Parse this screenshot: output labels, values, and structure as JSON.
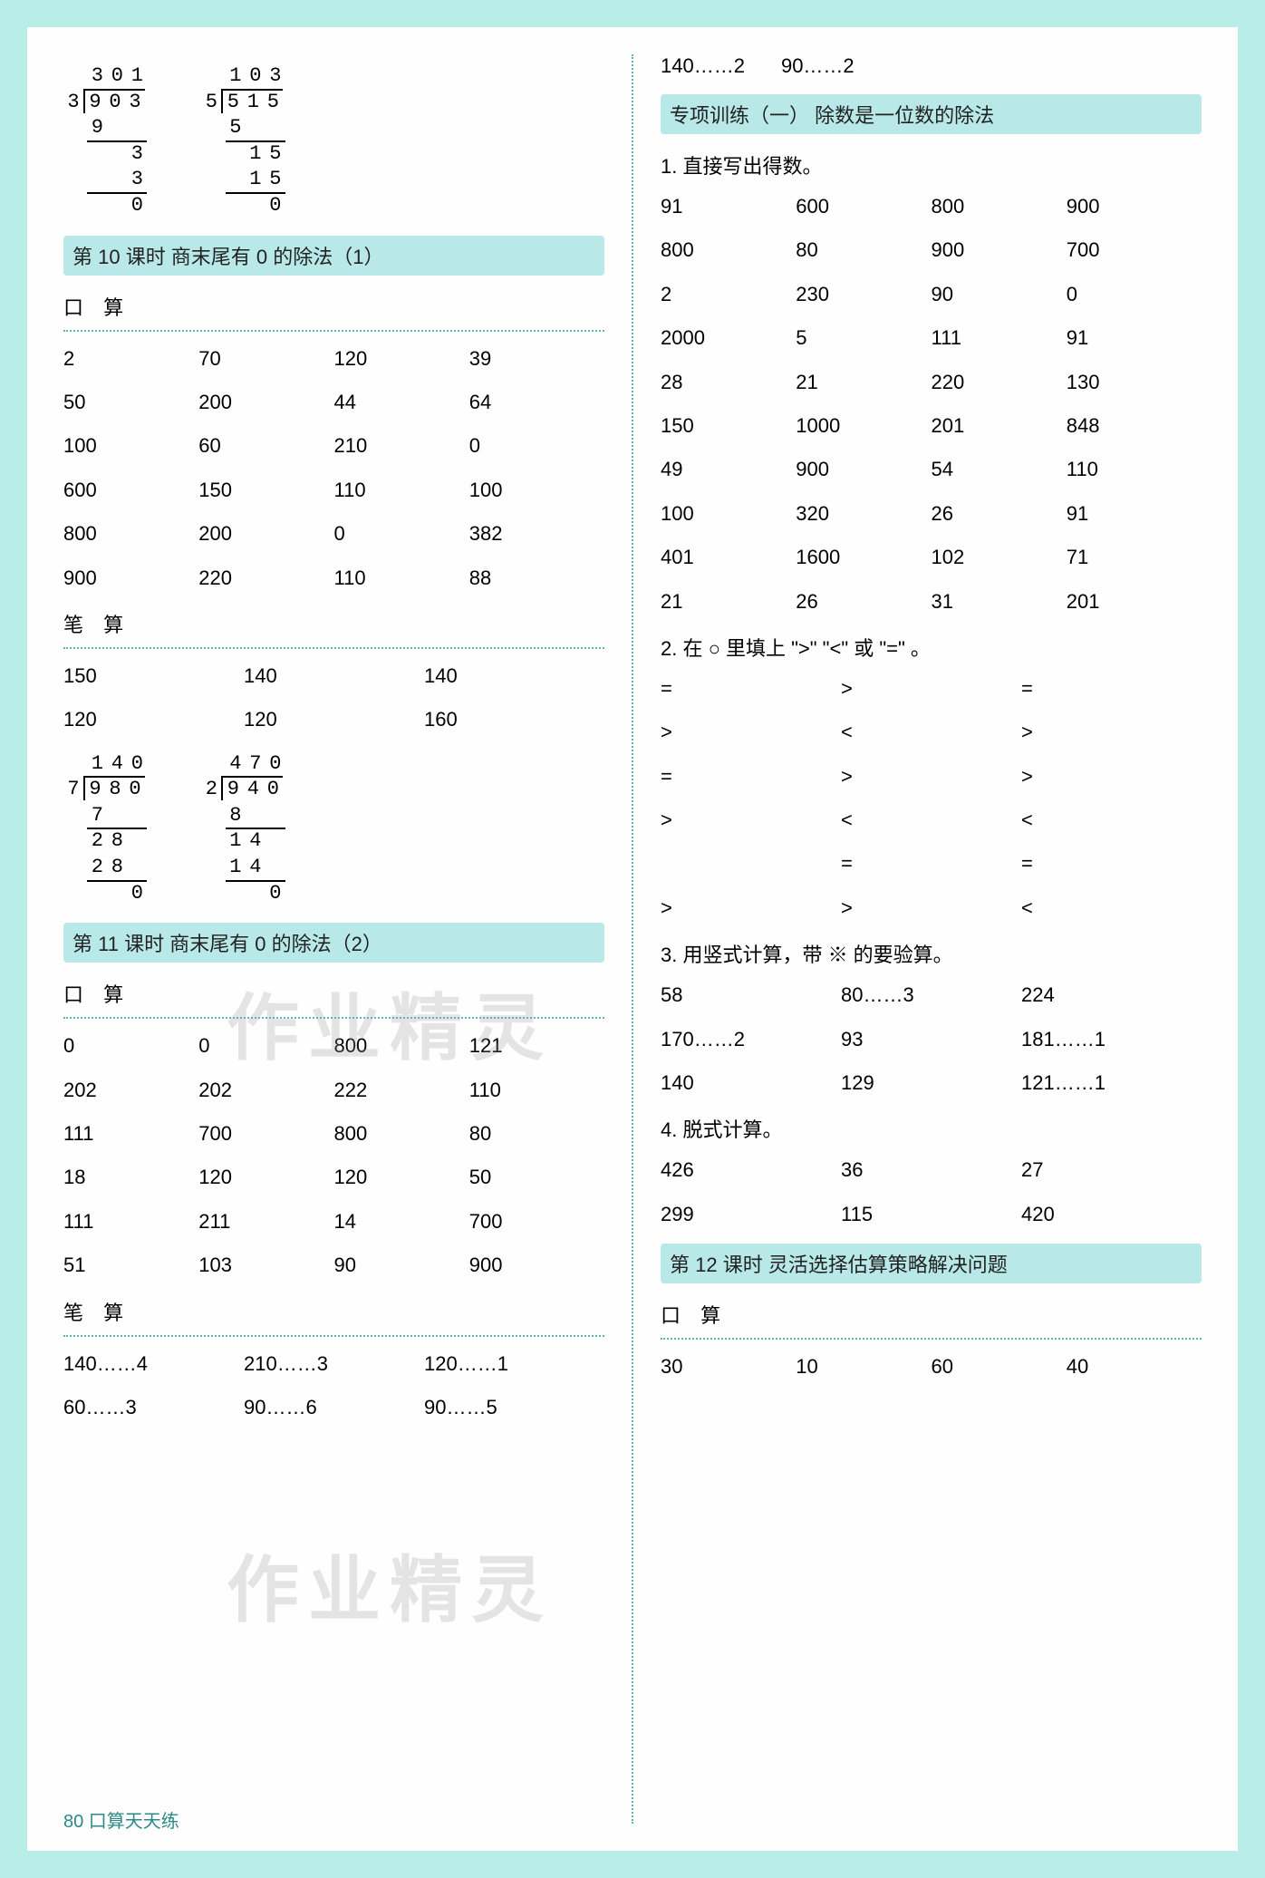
{
  "col1": {
    "longdiv_top": [
      {
        "quotient": [
          "3",
          "0",
          "1"
        ],
        "divisor": "3",
        "dividend": [
          "9",
          "0",
          "3"
        ],
        "steps": [
          [
            "9"
          ],
          [
            "",
            "",
            "3"
          ],
          [
            "",
            "",
            "3"
          ],
          [
            "",
            "",
            "0"
          ]
        ]
      },
      {
        "quotient": [
          "1",
          "0",
          "3"
        ],
        "divisor": "5",
        "dividend": [
          "5",
          "1",
          "5"
        ],
        "steps": [
          [
            "5"
          ],
          [
            "",
            "1",
            "5"
          ],
          [
            "",
            "1",
            "5"
          ],
          [
            "",
            "",
            "0"
          ]
        ]
      }
    ],
    "header10": "第 10 课时  商末尾有 0 的除法（1）",
    "label_kousuan": "口 算",
    "kousuan10": [
      [
        "2",
        "70",
        "120",
        "39"
      ],
      [
        "50",
        "200",
        "44",
        "64"
      ],
      [
        "100",
        "60",
        "210",
        "0"
      ],
      [
        "600",
        "150",
        "110",
        "100"
      ],
      [
        "800",
        "200",
        "0",
        "382"
      ],
      [
        "900",
        "220",
        "110",
        "88"
      ]
    ],
    "label_bisuan": "笔 算",
    "bisuan10_top": [
      [
        "150",
        "140",
        "140"
      ],
      [
        "120",
        "120",
        "160"
      ]
    ],
    "longdiv_mid": [
      {
        "quotient": [
          "1",
          "4",
          "0"
        ],
        "divisor": "7",
        "dividend": [
          "9",
          "8",
          "0"
        ],
        "steps": [
          [
            "7"
          ],
          [
            "2",
            "8"
          ],
          [
            "2",
            "8"
          ],
          [
            "",
            "",
            "0"
          ]
        ]
      },
      {
        "quotient": [
          "4",
          "7",
          "0"
        ],
        "divisor": "2",
        "dividend": [
          "9",
          "4",
          "0"
        ],
        "steps": [
          [
            "8"
          ],
          [
            "1",
            "4"
          ],
          [
            "1",
            "4"
          ],
          [
            "",
            "",
            "0"
          ]
        ]
      }
    ],
    "header11": "第 11 课时  商末尾有 0 的除法（2）",
    "kousuan11": [
      [
        "0",
        "0",
        "800",
        "121"
      ],
      [
        "202",
        "202",
        "222",
        "110"
      ],
      [
        "111",
        "700",
        "800",
        "80"
      ],
      [
        "18",
        "120",
        "120",
        "50"
      ],
      [
        "111",
        "211",
        "14",
        "700"
      ],
      [
        "51",
        "103",
        "90",
        "900"
      ]
    ],
    "bisuan11": [
      [
        "140……4",
        "210……3",
        "120……1"
      ],
      [
        "60……3",
        "90……6",
        "90……5"
      ]
    ]
  },
  "col2": {
    "top_row": [
      "140……2",
      "90……2"
    ],
    "header_sp": "专项训练（一） 除数是一位数的除法",
    "prompt1": "1. 直接写出得数。",
    "data1": [
      [
        "91",
        "600",
        "800",
        "900"
      ],
      [
        "800",
        "80",
        "900",
        "700"
      ],
      [
        "2",
        "230",
        "90",
        "0"
      ],
      [
        "2000",
        "5",
        "111",
        "91"
      ],
      [
        "28",
        "21",
        "220",
        "130"
      ],
      [
        "150",
        "1000",
        "201",
        "848"
      ],
      [
        "49",
        "900",
        "54",
        "110"
      ],
      [
        "100",
        "320",
        "26",
        "91"
      ],
      [
        "401",
        "1600",
        "102",
        "71"
      ],
      [
        "21",
        "26",
        "31",
        "201"
      ]
    ],
    "prompt2": "2. 在 ○ 里填上 \">\" \"<\" 或 \"=\" 。",
    "data2": [
      [
        "=",
        ">",
        "="
      ],
      [
        ">",
        "<",
        ">"
      ],
      [
        "=",
        ">",
        ">"
      ],
      [
        ">",
        "<",
        "<"
      ],
      [
        "",
        "=",
        "="
      ],
      [
        ">",
        ">",
        "<"
      ]
    ],
    "prompt3": "3. 用竖式计算，带 ※ 的要验算。",
    "data3": [
      [
        "58",
        "80……3",
        "224"
      ],
      [
        "170……2",
        "93",
        "181……1"
      ],
      [
        "140",
        "129",
        "121……1"
      ]
    ],
    "prompt4": "4. 脱式计算。",
    "data4": [
      [
        "426",
        "36",
        "27"
      ],
      [
        "299",
        "115",
        "420"
      ]
    ],
    "header12": "第 12 课时  灵活选择估算策略解决问题",
    "label_kousuan": "口 算",
    "data12": [
      [
        "30",
        "10",
        "60",
        "40"
      ]
    ]
  },
  "footer": "80  口算天天练",
  "watermark": "作业精灵"
}
